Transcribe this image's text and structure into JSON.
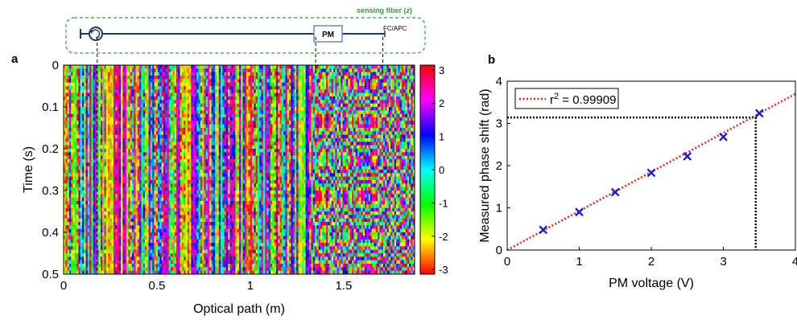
{
  "schematic": {
    "fiber_label": "sensing fiber (",
    "fiber_label_var": "z",
    "fiber_label_end": ")",
    "modulator_label": "PM",
    "connector_label": "FC/APC",
    "colors": {
      "box": "#2e9e3a",
      "fiber": "#1f3a5f",
      "modulator": "#6a8cbf"
    }
  },
  "chart_data": [
    {
      "panel": "a",
      "type": "heatmap",
      "xlabel": "Optical path (m)",
      "ylabel": "Time (s)",
      "xlim": [
        0,
        1.88
      ],
      "ylim": [
        0,
        0.5
      ],
      "y_reversed": true,
      "xticks": [
        0,
        0.5,
        1,
        1.5
      ],
      "xtick_labels": [
        "0",
        "0.5",
        "1",
        "1.5"
      ],
      "yticks": [
        0,
        0.1,
        0.2,
        0.3,
        0.4,
        0.5
      ],
      "ytick_labels": [
        "0",
        "0.1",
        "0.2",
        "0.3",
        "0.4",
        "0.5"
      ],
      "dashed_markers_x": [
        0.18,
        1.35,
        1.71
      ],
      "colorbar": {
        "range": [
          -3.14159,
          3.14159
        ],
        "ticks": [
          3,
          2,
          1,
          0,
          -1,
          -2,
          -3
        ],
        "tick_labels": [
          "3",
          "2",
          "1",
          "0",
          "-1",
          "-2",
          "-3"
        ],
        "colormap": "hsv"
      }
    },
    {
      "panel": "b",
      "type": "scatter",
      "xlabel": "PM voltage (V)",
      "ylabel": "Measured phase shift (rad)",
      "xlim": [
        0,
        4
      ],
      "ylim": [
        0,
        4
      ],
      "xticks": [
        0,
        1,
        2,
        3,
        4
      ],
      "xtick_labels": [
        "0",
        "1",
        "2",
        "3",
        "4"
      ],
      "yticks": [
        0,
        1,
        2,
        3,
        4
      ],
      "ytick_labels": [
        "0",
        "1",
        "2",
        "3",
        "4"
      ],
      "points": {
        "x": [
          0.5,
          1.0,
          1.5,
          2.0,
          2.5,
          3.0,
          3.5
        ],
        "y": [
          0.48,
          0.9,
          1.37,
          1.83,
          2.22,
          2.68,
          3.24
        ],
        "color": "#1a1ad6"
      },
      "fit": {
        "x": [
          0,
          4
        ],
        "y": [
          0,
          3.7
        ],
        "color": "#e8231f",
        "style": "dotted",
        "legend_prefix": "r",
        "legend_sup": "2",
        "legend_suffix": " = 0.99909"
      },
      "guide": {
        "y_pi": 3.14159,
        "x_at_pi": 3.45,
        "color": "#000000"
      }
    }
  ]
}
